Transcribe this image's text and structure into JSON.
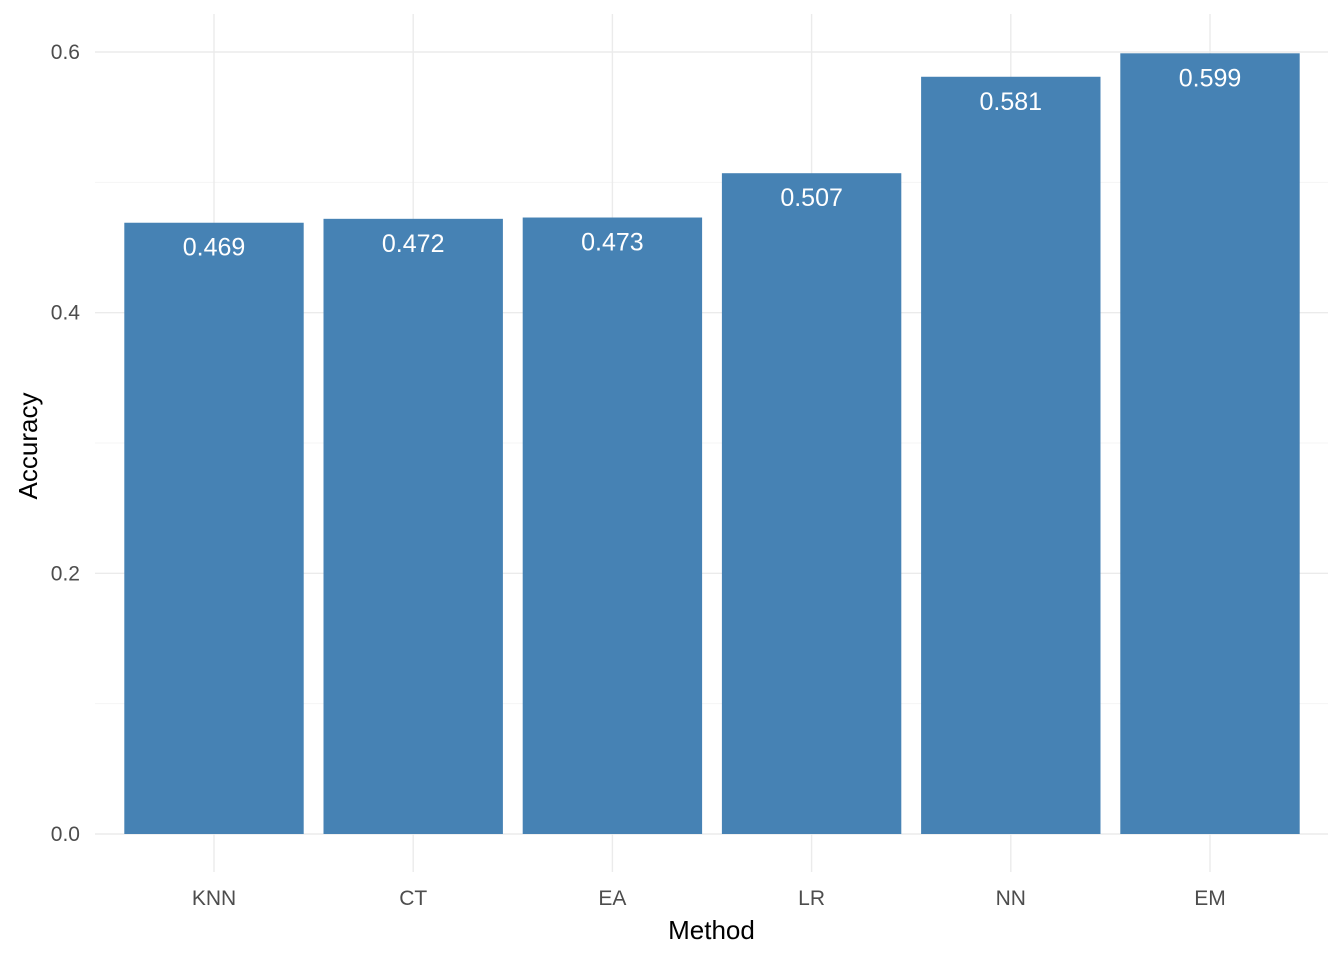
{
  "chart_data": {
    "type": "bar",
    "title": "",
    "xlabel": "Method",
    "ylabel": "Accuracy",
    "categories": [
      "KNN",
      "CT",
      "EA",
      "LR",
      "NN",
      "EM"
    ],
    "values": [
      0.469,
      0.472,
      0.473,
      0.507,
      0.581,
      0.599
    ],
    "data_labels": [
      "0.469",
      "0.472",
      "0.473",
      "0.507",
      "0.581",
      "0.599"
    ],
    "ylim": [
      0,
      0.6
    ],
    "y_ticks": [
      0.0,
      0.2,
      0.4,
      0.6
    ],
    "y_tick_labels": [
      "0.0",
      "0.2",
      "0.4",
      "0.6"
    ],
    "grid": true,
    "legend": "none",
    "colors": {
      "bar": "#4682b4",
      "label": "#ffffff"
    }
  }
}
